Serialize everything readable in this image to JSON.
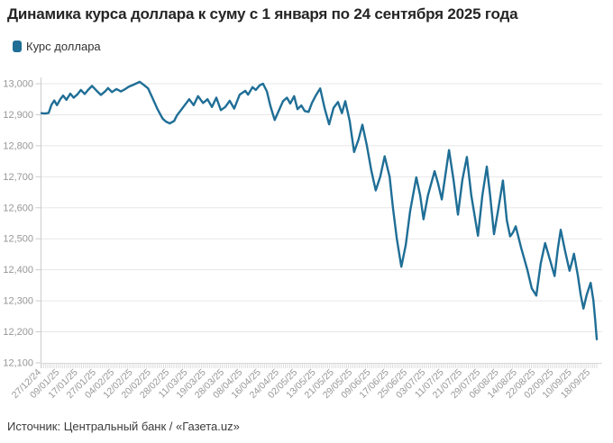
{
  "title": "Динамика курса доллара к суму с 1 января по 24 сентября 2025 года",
  "legend": {
    "label": "Курс доллара",
    "color": "#1f6e96"
  },
  "source": "Источник: Центральный банк / «Газета.uz»",
  "colors": {
    "line": "#1f6e96",
    "grid": "#e7e7e7",
    "axis": "#cccccc",
    "minor_tick": "#dddddd",
    "axis_label": "#979797",
    "title_text": "#252525"
  },
  "chart_data": {
    "type": "line",
    "title": "Динамика курса доллара к суму с 1 января по 24 сентября 2025 года",
    "series_name": "Курс доллара",
    "xlabel": "",
    "ylabel": "",
    "ylim": [
      12100,
      13000
    ],
    "y_tick_step": 100,
    "y_tick_labels": [
      "12,100",
      "12,200",
      "12,300",
      "12,400",
      "12,500",
      "12,600",
      "12,700",
      "12,800",
      "12,900",
      "13,000"
    ],
    "grid": true,
    "legend_position": "top-left",
    "x_label_rotation": -45,
    "x_labels": [
      "27/12/24",
      "09/01/25",
      "17/01/25",
      "27/01/25",
      "04/02/25",
      "12/02/25",
      "20/02/25",
      "28/02/25",
      "11/03/25",
      "19/03/25",
      "28/03/25",
      "08/04/25",
      "16/04/25",
      "24/04/25",
      "02/05/25",
      "13/05/25",
      "21/05/25",
      "29/05/25",
      "09/06/25",
      "17/06/25",
      "25/06/25",
      "03/07/25",
      "11/07/25",
      "21/07/25",
      "29/07/25",
      "06/08/25",
      "14/08/25",
      "22/08/25",
      "02/09/25",
      "10/09/25",
      "18/09/25"
    ],
    "points": [
      [
        0.0,
        12905
      ],
      [
        0.006,
        12904
      ],
      [
        0.013,
        12906
      ],
      [
        0.018,
        12932
      ],
      [
        0.023,
        12946
      ],
      [
        0.028,
        12931
      ],
      [
        0.034,
        12950
      ],
      [
        0.039,
        12962
      ],
      [
        0.045,
        12948
      ],
      [
        0.052,
        12968
      ],
      [
        0.058,
        12955
      ],
      [
        0.065,
        12966
      ],
      [
        0.071,
        12980
      ],
      [
        0.078,
        12967
      ],
      [
        0.084,
        12980
      ],
      [
        0.091,
        12993
      ],
      [
        0.099,
        12978
      ],
      [
        0.107,
        12964
      ],
      [
        0.115,
        12976
      ],
      [
        0.12,
        12986
      ],
      [
        0.127,
        12973
      ],
      [
        0.135,
        12983
      ],
      [
        0.143,
        12975
      ],
      [
        0.151,
        12983
      ],
      [
        0.157,
        12990
      ],
      [
        0.166,
        12997
      ],
      [
        0.177,
        13006
      ],
      [
        0.185,
        12995
      ],
      [
        0.192,
        12985
      ],
      [
        0.201,
        12950
      ],
      [
        0.209,
        12918
      ],
      [
        0.218,
        12888
      ],
      [
        0.224,
        12878
      ],
      [
        0.231,
        12872
      ],
      [
        0.239,
        12880
      ],
      [
        0.244,
        12898
      ],
      [
        0.25,
        12912
      ],
      [
        0.266,
        12950
      ],
      [
        0.274,
        12931
      ],
      [
        0.282,
        12960
      ],
      [
        0.291,
        12938
      ],
      [
        0.299,
        12950
      ],
      [
        0.307,
        12925
      ],
      [
        0.315,
        12955
      ],
      [
        0.323,
        12915
      ],
      [
        0.331,
        12925
      ],
      [
        0.339,
        12945
      ],
      [
        0.347,
        12920
      ],
      [
        0.357,
        12965
      ],
      [
        0.367,
        12977
      ],
      [
        0.372,
        12965
      ],
      [
        0.38,
        12989
      ],
      [
        0.386,
        12980
      ],
      [
        0.393,
        12995
      ],
      [
        0.399,
        13000
      ],
      [
        0.406,
        12975
      ],
      [
        0.412,
        12930
      ],
      [
        0.42,
        12883
      ],
      [
        0.429,
        12920
      ],
      [
        0.435,
        12944
      ],
      [
        0.442,
        12955
      ],
      [
        0.448,
        12936
      ],
      [
        0.455,
        12960
      ],
      [
        0.461,
        12918
      ],
      [
        0.468,
        12930
      ],
      [
        0.474,
        12912
      ],
      [
        0.481,
        12909
      ],
      [
        0.487,
        12938
      ],
      [
        0.494,
        12962
      ],
      [
        0.502,
        12985
      ],
      [
        0.51,
        12920
      ],
      [
        0.518,
        12869
      ],
      [
        0.526,
        12922
      ],
      [
        0.534,
        12941
      ],
      [
        0.541,
        12905
      ],
      [
        0.547,
        12944
      ],
      [
        0.555,
        12880
      ],
      [
        0.563,
        12780
      ],
      [
        0.571,
        12820
      ],
      [
        0.578,
        12868
      ],
      [
        0.586,
        12800
      ],
      [
        0.594,
        12720
      ],
      [
        0.602,
        12656
      ],
      [
        0.61,
        12700
      ],
      [
        0.618,
        12766
      ],
      [
        0.627,
        12700
      ],
      [
        0.633,
        12600
      ],
      [
        0.64,
        12500
      ],
      [
        0.648,
        12410
      ],
      [
        0.656,
        12480
      ],
      [
        0.664,
        12590
      ],
      [
        0.675,
        12698
      ],
      [
        0.682,
        12640
      ],
      [
        0.688,
        12563
      ],
      [
        0.696,
        12640
      ],
      [
        0.708,
        12718
      ],
      [
        0.714,
        12680
      ],
      [
        0.721,
        12627
      ],
      [
        0.727,
        12700
      ],
      [
        0.734,
        12786
      ],
      [
        0.742,
        12690
      ],
      [
        0.75,
        12578
      ],
      [
        0.758,
        12690
      ],
      [
        0.766,
        12764
      ],
      [
        0.774,
        12640
      ],
      [
        0.786,
        12510
      ],
      [
        0.794,
        12640
      ],
      [
        0.802,
        12733
      ],
      [
        0.808,
        12640
      ],
      [
        0.815,
        12515
      ],
      [
        0.823,
        12600
      ],
      [
        0.831,
        12688
      ],
      [
        0.838,
        12560
      ],
      [
        0.844,
        12508
      ],
      [
        0.849,
        12520
      ],
      [
        0.854,
        12540
      ],
      [
        0.864,
        12470
      ],
      [
        0.875,
        12400
      ],
      [
        0.883,
        12340
      ],
      [
        0.891,
        12317
      ],
      [
        0.899,
        12420
      ],
      [
        0.907,
        12486
      ],
      [
        0.916,
        12430
      ],
      [
        0.924,
        12380
      ],
      [
        0.93,
        12470
      ],
      [
        0.935,
        12529
      ],
      [
        0.943,
        12460
      ],
      [
        0.951,
        12397
      ],
      [
        0.956,
        12430
      ],
      [
        0.959,
        12452
      ],
      [
        0.966,
        12380
      ],
      [
        0.971,
        12320
      ],
      [
        0.976,
        12275
      ],
      [
        0.982,
        12320
      ],
      [
        0.989,
        12358
      ],
      [
        0.994,
        12300
      ],
      [
        0.997,
        12240
      ],
      [
        1.0,
        12176
      ]
    ]
  }
}
